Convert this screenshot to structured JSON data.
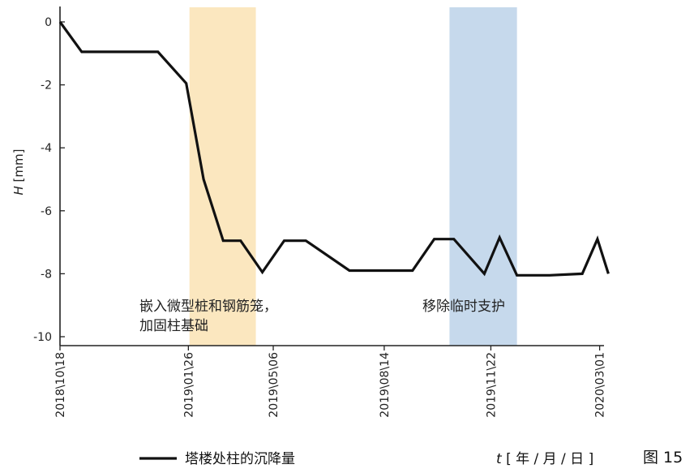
{
  "chart_data": {
    "type": "line",
    "ylabel_symbol": "H",
    "ylabel_unit": "[mm]",
    "xlabel_symbol": "t",
    "xlabel_unit": "[ 年 / 月 / 日 ]",
    "figure_label": "图 15",
    "ylim": [
      -10,
      0
    ],
    "yticks": [
      0,
      -2,
      -4,
      -6,
      -8,
      -10
    ],
    "xlim": [
      0,
      25
    ],
    "xticks": [
      {
        "x": 0,
        "label": "2018\\10\\18"
      },
      {
        "x": 5.9,
        "label": "2019\\01\\26"
      },
      {
        "x": 9.8,
        "label": "2019\\05\\06"
      },
      {
        "x": 14.9,
        "label": "2019\\08\\14"
      },
      {
        "x": 19.8,
        "label": "2019\\11\\22"
      },
      {
        "x": 24.8,
        "label": "2020\\03\\01"
      }
    ],
    "grid": false,
    "legend_position": "bottom-left",
    "series": [
      {
        "name": "塔楼处柱的沉降量",
        "color": "#111111",
        "x": [
          0,
          1,
          4.5,
          5.8,
          6.6,
          7.5,
          8.3,
          9.3,
          10.3,
          11.3,
          13.3,
          16.2,
          17.2,
          18.1,
          19.5,
          20.2,
          21.0,
          22.5,
          24.0,
          24.7,
          25.2
        ],
        "y": [
          0,
          -0.95,
          -0.95,
          -1.95,
          -5.0,
          -6.95,
          -6.95,
          -7.95,
          -6.95,
          -6.95,
          -7.9,
          -7.9,
          -6.9,
          -6.9,
          -8.0,
          -6.85,
          -8.05,
          -8.05,
          -8.0,
          -6.9,
          -8.0
        ]
      }
    ],
    "bands": [
      {
        "x0": 5.95,
        "x1": 9.0,
        "color": "#fbe7bf",
        "label_lines": [
          "嵌入微型桩和钢筋笼，",
          "加固柱基础"
        ]
      },
      {
        "x0": 17.9,
        "x1": 21.0,
        "color": "#c6d9ec",
        "label_lines": [
          "移除临时支护"
        ]
      }
    ]
  }
}
